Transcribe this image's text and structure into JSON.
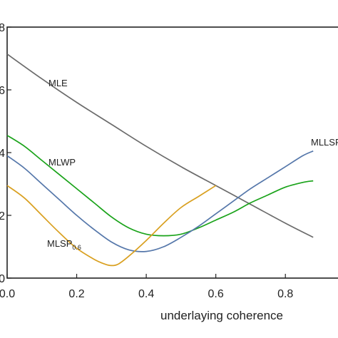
{
  "chart_data": {
    "type": "line",
    "xlabel": "underlaying coherence",
    "ylabel": "",
    "xlim": [
      0.0,
      0.88
    ],
    "ylim": [
      0.0,
      0.8
    ],
    "x_ticks": [
      0.0,
      0.2,
      0.4,
      0.6,
      0.8
    ],
    "x_tick_labels": [
      "0.0",
      "0.2",
      "0.4",
      "0.6",
      "0.8"
    ],
    "y_ticks": [
      0.0,
      0.2,
      0.4,
      0.6,
      0.8
    ],
    "y_tick_labels": [
      "0",
      "2",
      "4",
      "6",
      "8"
    ],
    "grid": false,
    "series": [
      {
        "name": "MLE",
        "color": "#6b6b6b",
        "x": [
          0.0,
          0.1,
          0.2,
          0.3,
          0.4,
          0.5,
          0.6,
          0.7,
          0.8,
          0.88
        ],
        "y": [
          0.714,
          0.635,
          0.56,
          0.49,
          0.42,
          0.355,
          0.295,
          0.235,
          0.175,
          0.13
        ]
      },
      {
        "name": "MLWP",
        "color": "#1aa31a",
        "x": [
          0.0,
          0.05,
          0.1,
          0.15,
          0.2,
          0.25,
          0.3,
          0.35,
          0.4,
          0.45,
          0.5,
          0.55,
          0.6,
          0.65,
          0.7,
          0.75,
          0.8,
          0.85,
          0.88
        ],
        "y": [
          0.455,
          0.42,
          0.375,
          0.33,
          0.285,
          0.24,
          0.195,
          0.16,
          0.14,
          0.135,
          0.14,
          0.16,
          0.185,
          0.21,
          0.24,
          0.265,
          0.29,
          0.305,
          0.31
        ]
      },
      {
        "name": "MLLSP",
        "color": "#5577aa",
        "x": [
          0.0,
          0.05,
          0.1,
          0.15,
          0.2,
          0.25,
          0.3,
          0.35,
          0.4,
          0.45,
          0.5,
          0.55,
          0.6,
          0.65,
          0.7,
          0.75,
          0.8,
          0.85,
          0.88
        ],
        "y": [
          0.39,
          0.35,
          0.3,
          0.25,
          0.2,
          0.155,
          0.115,
          0.09,
          0.085,
          0.1,
          0.13,
          0.165,
          0.205,
          0.245,
          0.285,
          0.32,
          0.355,
          0.39,
          0.405
        ]
      },
      {
        "name": "MLSP0.6",
        "label_main": "MLSP",
        "label_sub": "0.6",
        "color": "#d9a020",
        "x": [
          0.0,
          0.05,
          0.1,
          0.15,
          0.2,
          0.25,
          0.28,
          0.3,
          0.32,
          0.35,
          0.4,
          0.45,
          0.5,
          0.55,
          0.6
        ],
        "y": [
          0.295,
          0.255,
          0.2,
          0.145,
          0.095,
          0.06,
          0.045,
          0.04,
          0.045,
          0.07,
          0.12,
          0.175,
          0.225,
          0.26,
          0.295
        ]
      }
    ],
    "annotations": {
      "mle": "MLE",
      "mlwp": "MLWP",
      "mllsp": "MLLSP",
      "mlsp_main": "MLSP",
      "mlsp_sub": "0.6"
    }
  }
}
